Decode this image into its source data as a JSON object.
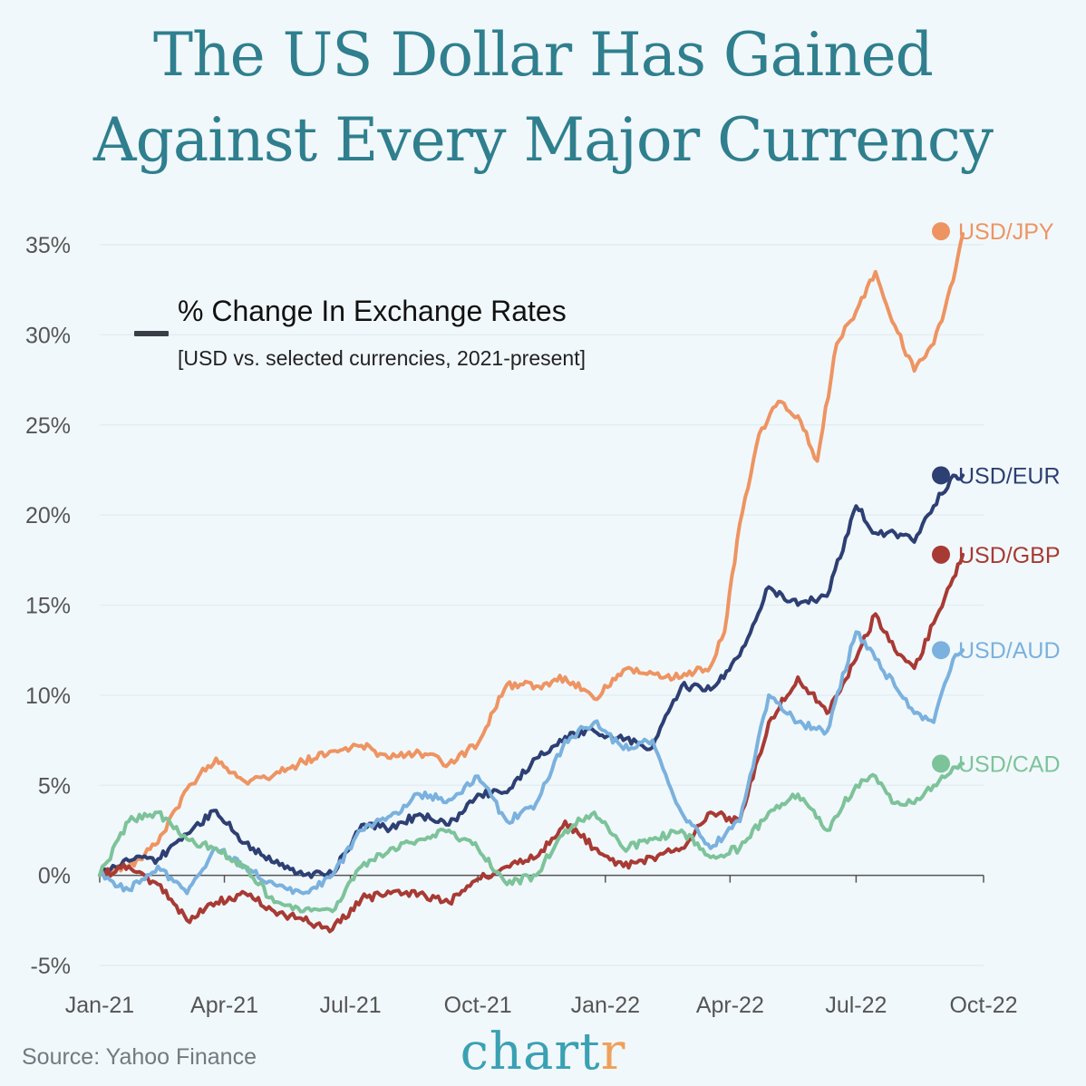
{
  "title": {
    "line1": "The US Dollar Has Gained",
    "line2": "Against Every Major Currency"
  },
  "legend": {
    "label": "% Change In Exchange Rates",
    "sublabel": "[USD vs. selected currencies, 2021-present]"
  },
  "footer": {
    "source": "Source: Yahoo Finance",
    "brand_main": "chart",
    "brand_accent": "r"
  },
  "colors": {
    "jpy": "#ee9462",
    "eur": "#2d3f73",
    "gbp": "#a83a34",
    "aud": "#7ab1de",
    "cad": "#7dc39a",
    "axis": "#555555",
    "grid": "#e3eef2",
    "legend_swatch": "#3a3f47"
  },
  "chart_data": {
    "type": "line",
    "xlabel": "",
    "ylabel": "",
    "ylim": [
      -5,
      35
    ],
    "xlim": [
      "2021-01-01",
      "2022-10-01"
    ],
    "yticks": [
      -5,
      0,
      5,
      10,
      15,
      20,
      25,
      30,
      35
    ],
    "ytick_labels": [
      "-5%",
      "0%",
      "5%",
      "10%",
      "15%",
      "20%",
      "25%",
      "30%",
      "35%"
    ],
    "xticks": [
      "2021-01-01",
      "2021-04-01",
      "2021-07-01",
      "2021-10-01",
      "2022-01-01",
      "2022-04-01",
      "2022-07-01",
      "2022-10-01"
    ],
    "xtick_labels": [
      "Jan-21",
      "Apr-21",
      "Jul-21",
      "Oct-21",
      "Jan-22",
      "Apr-22",
      "Jul-22",
      "Oct-22"
    ],
    "grid": "horizontal",
    "series": [
      {
        "name": "USD/JPY",
        "key": "jpy",
        "x": [
          "2021-01-01",
          "2021-01-22",
          "2021-02-12",
          "2021-03-05",
          "2021-03-26",
          "2021-04-16",
          "2021-05-07",
          "2021-05-28",
          "2021-06-18",
          "2021-07-09",
          "2021-07-30",
          "2021-08-20",
          "2021-09-10",
          "2021-10-01",
          "2021-10-22",
          "2021-11-12",
          "2021-12-03",
          "2021-12-24",
          "2022-01-14",
          "2022-02-04",
          "2022-02-25",
          "2022-03-18",
          "2022-03-28",
          "2022-04-08",
          "2022-04-22",
          "2022-05-06",
          "2022-05-20",
          "2022-06-03",
          "2022-06-17",
          "2022-07-01",
          "2022-07-15",
          "2022-07-29",
          "2022-08-12",
          "2022-08-26",
          "2022-09-09",
          "2022-09-16"
        ],
        "y": [
          0,
          0.5,
          1.8,
          4.8,
          6.5,
          5.2,
          5.6,
          6.3,
          6.9,
          7.2,
          6.5,
          6.8,
          6.2,
          7.3,
          10.6,
          10.5,
          11.0,
          9.8,
          11.4,
          11.2,
          11.0,
          11.6,
          13.5,
          19.5,
          24.5,
          26.3,
          25.5,
          23.0,
          29.5,
          31.3,
          33.5,
          30.5,
          28.0,
          29.5,
          33.0,
          35.6
        ]
      },
      {
        "name": "USD/EUR",
        "key": "eur",
        "x": [
          "2021-01-01",
          "2021-01-22",
          "2021-02-12",
          "2021-03-05",
          "2021-03-26",
          "2021-04-16",
          "2021-05-07",
          "2021-05-28",
          "2021-06-18",
          "2021-07-09",
          "2021-07-30",
          "2021-08-20",
          "2021-09-10",
          "2021-10-01",
          "2021-10-22",
          "2021-11-12",
          "2021-12-03",
          "2021-12-24",
          "2022-01-14",
          "2022-02-04",
          "2022-02-25",
          "2022-03-18",
          "2022-04-08",
          "2022-04-29",
          "2022-05-20",
          "2022-06-10",
          "2022-07-01",
          "2022-07-15",
          "2022-07-29",
          "2022-08-12",
          "2022-08-26",
          "2022-09-09",
          "2022-09-16"
        ],
        "y": [
          0,
          0.8,
          0.9,
          2.3,
          3.6,
          1.8,
          0.7,
          0.0,
          0.1,
          2.8,
          2.6,
          3.4,
          2.8,
          4.5,
          4.6,
          6.5,
          7.7,
          8.0,
          7.5,
          7.1,
          10.5,
          10.3,
          12.2,
          16.0,
          15.0,
          15.5,
          20.5,
          19.0,
          19.0,
          18.5,
          20.5,
          22.2,
          22.2
        ]
      },
      {
        "name": "USD/GBP",
        "key": "gbp",
        "x": [
          "2021-01-01",
          "2021-01-22",
          "2021-02-12",
          "2021-03-05",
          "2021-03-26",
          "2021-04-16",
          "2021-05-07",
          "2021-05-28",
          "2021-06-18",
          "2021-07-09",
          "2021-07-30",
          "2021-08-20",
          "2021-09-10",
          "2021-10-01",
          "2021-10-22",
          "2021-11-12",
          "2021-12-03",
          "2021-12-24",
          "2022-01-14",
          "2022-02-04",
          "2022-02-25",
          "2022-03-18",
          "2022-04-08",
          "2022-04-29",
          "2022-05-20",
          "2022-06-10",
          "2022-07-01",
          "2022-07-15",
          "2022-07-29",
          "2022-08-12",
          "2022-08-26",
          "2022-09-09",
          "2022-09-16"
        ],
        "y": [
          0,
          0.5,
          -0.5,
          -2.5,
          -1.5,
          -1.0,
          -2.0,
          -2.5,
          -3.0,
          -1.3,
          -1.0,
          -1.0,
          -1.5,
          -0.2,
          0.5,
          1.0,
          3.0,
          1.5,
          0.5,
          1.0,
          1.5,
          3.5,
          3.0,
          8.5,
          11.0,
          9.0,
          12.0,
          14.5,
          12.5,
          11.5,
          14.0,
          16.5,
          17.8
        ]
      },
      {
        "name": "USD/AUD",
        "key": "aud",
        "x": [
          "2021-01-01",
          "2021-01-22",
          "2021-02-12",
          "2021-03-05",
          "2021-03-26",
          "2021-04-16",
          "2021-05-07",
          "2021-05-28",
          "2021-06-18",
          "2021-07-09",
          "2021-07-30",
          "2021-08-20",
          "2021-09-10",
          "2021-10-01",
          "2021-10-22",
          "2021-11-12",
          "2021-12-03",
          "2021-12-24",
          "2022-01-14",
          "2022-02-04",
          "2022-02-25",
          "2022-03-18",
          "2022-04-08",
          "2022-04-29",
          "2022-05-20",
          "2022-06-10",
          "2022-07-01",
          "2022-07-15",
          "2022-07-29",
          "2022-08-12",
          "2022-08-26",
          "2022-09-09",
          "2022-09-16"
        ],
        "y": [
          0,
          -0.8,
          0.5,
          -1.0,
          1.5,
          0.5,
          -0.5,
          -1.0,
          0.0,
          2.5,
          3.3,
          4.5,
          4.2,
          5.5,
          3.0,
          4.0,
          7.5,
          8.5,
          7.0,
          7.5,
          3.5,
          1.5,
          3.0,
          10.0,
          8.5,
          8.0,
          13.5,
          12.0,
          10.5,
          9.0,
          8.5,
          12.0,
          12.5
        ]
      },
      {
        "name": "USD/CAD",
        "key": "cad",
        "x": [
          "2021-01-01",
          "2021-01-22",
          "2021-02-12",
          "2021-03-05",
          "2021-03-26",
          "2021-04-16",
          "2021-05-07",
          "2021-05-28",
          "2021-06-18",
          "2021-07-09",
          "2021-07-30",
          "2021-08-20",
          "2021-09-10",
          "2021-10-01",
          "2021-10-22",
          "2021-11-12",
          "2021-12-03",
          "2021-12-24",
          "2022-01-14",
          "2022-02-04",
          "2022-02-25",
          "2022-03-18",
          "2022-04-08",
          "2022-04-29",
          "2022-05-20",
          "2022-06-10",
          "2022-07-01",
          "2022-07-15",
          "2022-07-29",
          "2022-08-12",
          "2022-08-26",
          "2022-09-09",
          "2022-09-16"
        ],
        "y": [
          0,
          3.0,
          3.5,
          2.0,
          1.5,
          0.5,
          -1.5,
          -2.0,
          -2.0,
          0.5,
          1.5,
          2.0,
          2.5,
          1.5,
          -0.5,
          0.0,
          2.5,
          3.5,
          1.5,
          2.0,
          2.5,
          1.0,
          1.5,
          3.5,
          4.5,
          2.5,
          5.0,
          5.5,
          4.0,
          4.0,
          5.0,
          6.0,
          6.2
        ]
      }
    ]
  }
}
